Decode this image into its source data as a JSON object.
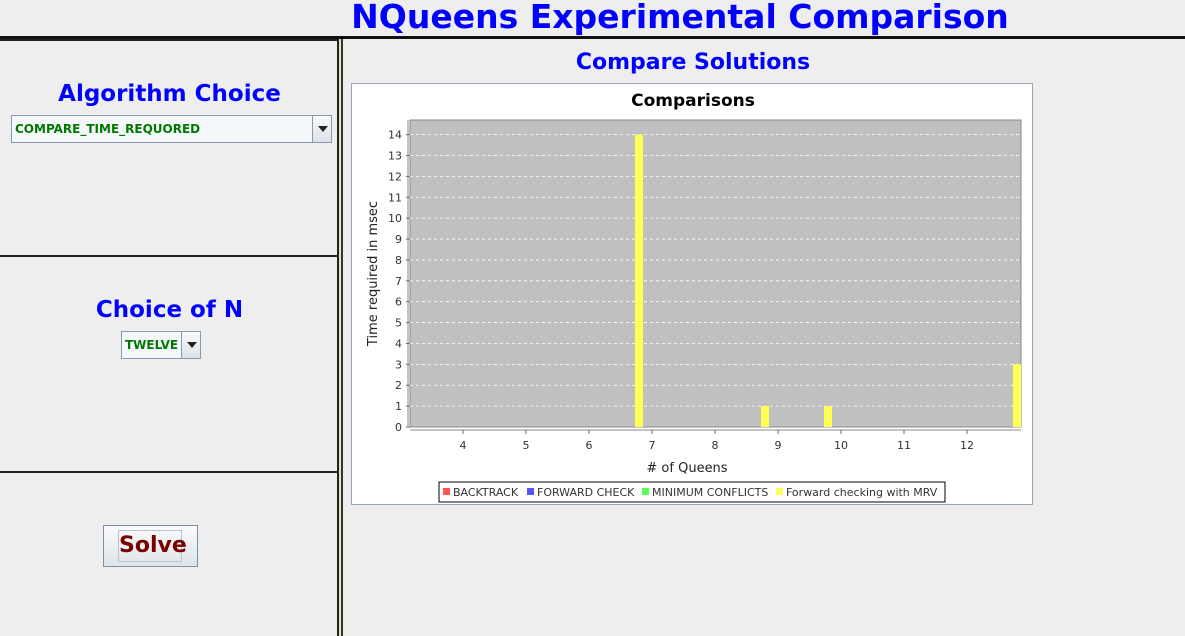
{
  "app": {
    "title": "NQueens Experimental Comparison"
  },
  "algorithm_panel": {
    "heading": "Algorithm Choice",
    "selected": "COMPARE_TIME_REQUORED"
  },
  "n_panel": {
    "heading": "Choice of N",
    "selected": "TWELVE"
  },
  "solve_panel": {
    "button_label": "Solve"
  },
  "results": {
    "heading": "Compare Solutions"
  },
  "colors": {
    "heading_blue": "#0000ff",
    "combo_text_green": "#007700",
    "solve_text": "#7a0000",
    "plot_background": "#c0c0c0",
    "series": [
      "#ff5555",
      "#5555ff",
      "#55ff55",
      "#ffff55"
    ]
  },
  "chart_data": {
    "type": "bar",
    "title": "Comparisons",
    "xlabel": "# of Queens",
    "ylabel": "Time required in msec",
    "categories": [
      "4",
      "5",
      "6",
      "7",
      "8",
      "9",
      "10",
      "11",
      "12"
    ],
    "series": [
      {
        "name": "BACKTRACK",
        "values": [
          0,
          0,
          0,
          0,
          0,
          0,
          0,
          0,
          0
        ]
      },
      {
        "name": "FORWARD CHECK",
        "values": [
          0,
          0,
          0,
          0,
          0,
          0,
          0,
          0,
          0
        ]
      },
      {
        "name": "MINIMUM CONFLICTS",
        "values": [
          0,
          0,
          0,
          0,
          0,
          0,
          0,
          0,
          0
        ]
      },
      {
        "name": "Forward checking with MRV",
        "values": [
          0,
          0,
          14,
          0,
          1,
          1,
          0,
          0,
          3
        ]
      }
    ],
    "ylim": [
      0,
      14.7
    ],
    "yticks": [
      0,
      1,
      2,
      3,
      4,
      5,
      6,
      7,
      8,
      9,
      10,
      11,
      12,
      13,
      14
    ],
    "grid": true,
    "legend_position": "bottom"
  }
}
